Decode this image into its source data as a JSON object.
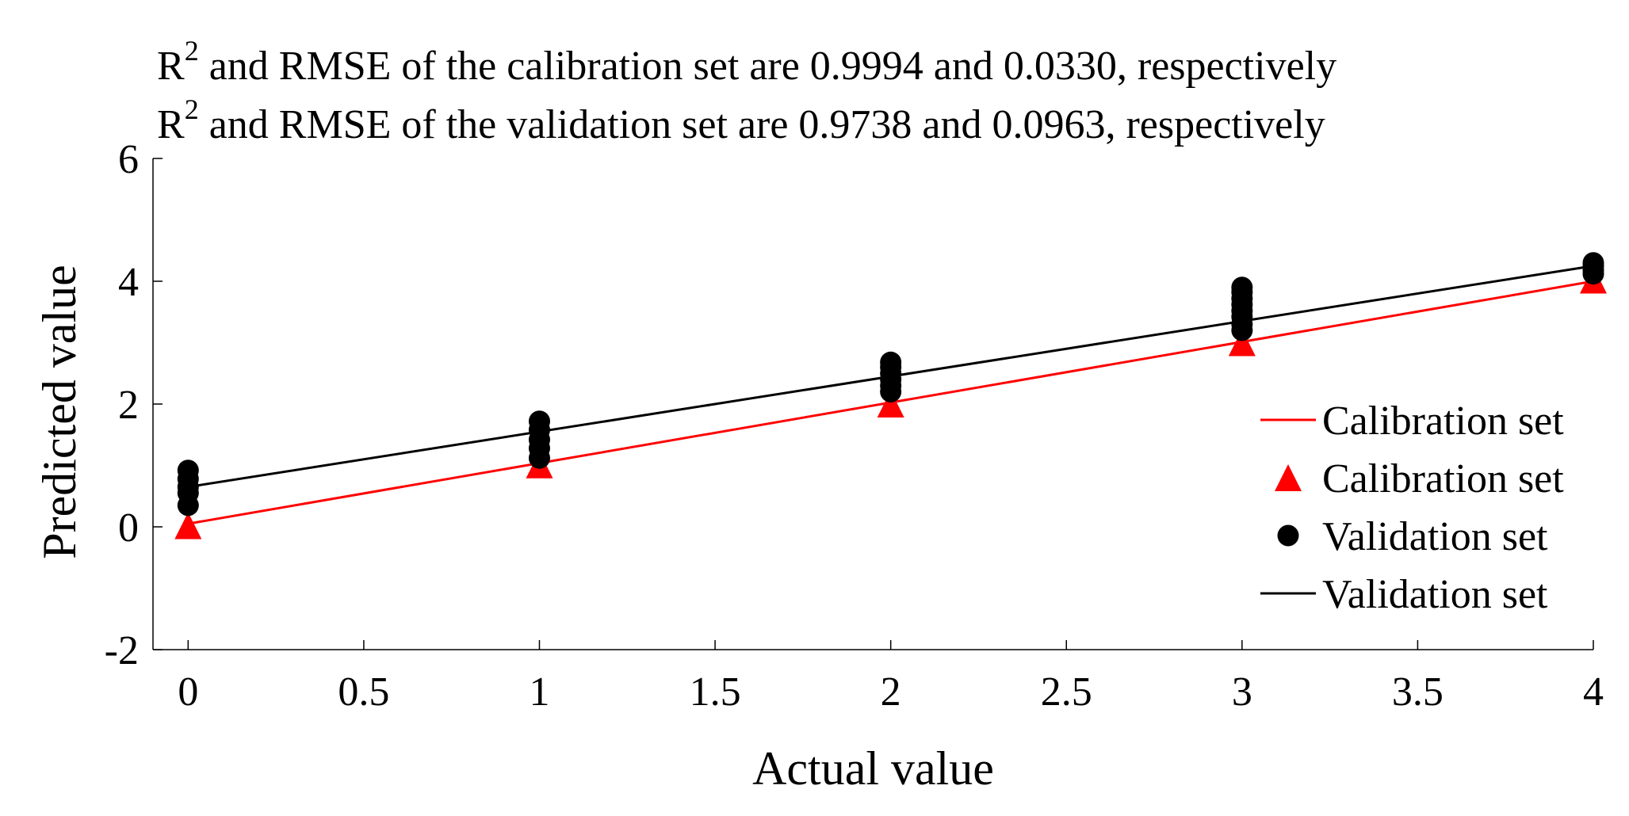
{
  "chart_data": {
    "type": "scatter",
    "title_lines": [
      {
        "prefix": "R",
        "sup": "2",
        "text": " and RMSE of the calibration set are 0.9994 and 0.0330, respectively"
      },
      {
        "prefix": "R",
        "sup": "2",
        "text": " and RMSE of the validation set are 0.9738 and 0.0963, respectively"
      }
    ],
    "xlabel": "Actual value",
    "ylabel": "Predicted value",
    "xlim": [
      -0.1,
      4
    ],
    "ylim": [
      -2,
      6
    ],
    "xticks": [
      0,
      0.5,
      1,
      1.5,
      2,
      2.5,
      3,
      3.5,
      4
    ],
    "xtick_labels": [
      "0",
      "0.5",
      "1",
      "1.5",
      "2",
      "2.5",
      "3",
      "3.5",
      "4"
    ],
    "yticks": [
      -2,
      0,
      2,
      4,
      6
    ],
    "ytick_labels": [
      "-2",
      "0",
      "2",
      "4",
      "6"
    ],
    "series": [
      {
        "name": "Calibration set",
        "kind": "line",
        "color": "#ff0000",
        "x": [
          0,
          4
        ],
        "y": [
          0.05,
          4.0
        ]
      },
      {
        "name": "Calibration set",
        "kind": "triangle",
        "color": "#ff0000",
        "x": [
          0,
          1,
          2,
          3,
          4
        ],
        "y": [
          0.02,
          1.01,
          2.0,
          3.0,
          4.02
        ]
      },
      {
        "name": "Validation set",
        "kind": "dot",
        "color": "#000000",
        "x": [
          0,
          0,
          0,
          0,
          0,
          1,
          1,
          1,
          1,
          1,
          2,
          2,
          2,
          2,
          2,
          2,
          3,
          3,
          3,
          3,
          3,
          3,
          3,
          3,
          4,
          4,
          4,
          4
        ],
        "y": [
          0.35,
          0.55,
          0.65,
          0.78,
          0.92,
          1.12,
          1.28,
          1.42,
          1.58,
          1.72,
          2.2,
          2.3,
          2.4,
          2.5,
          2.6,
          2.68,
          3.2,
          3.3,
          3.42,
          3.52,
          3.62,
          3.72,
          3.82,
          3.9,
          4.12,
          4.18,
          4.25,
          4.3
        ]
      },
      {
        "name": "Validation set",
        "kind": "line",
        "color": "#000000",
        "x": [
          0,
          4
        ],
        "y": [
          0.65,
          4.25
        ]
      }
    ],
    "legend_position": "right",
    "grid": false
  }
}
